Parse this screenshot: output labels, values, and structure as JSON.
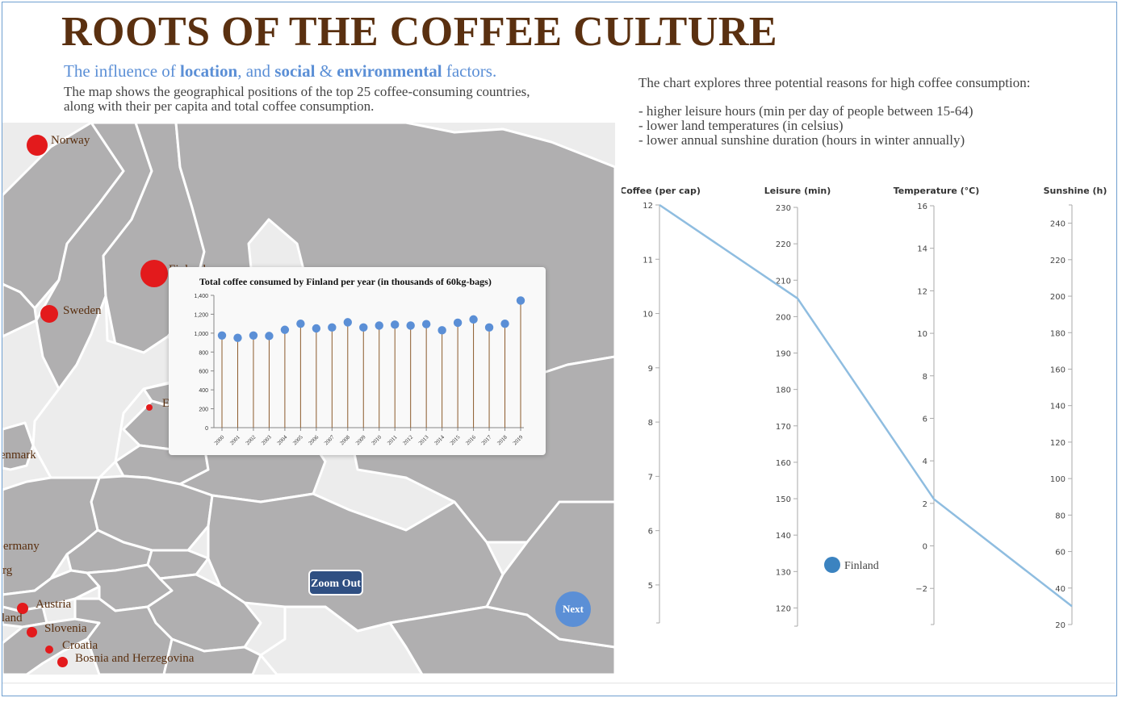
{
  "header": {
    "title": "ROOTS OF THE COFFEE CULTURE",
    "subtitle_parts": [
      "The influence of ",
      "location",
      ", and ",
      "social",
      " & ",
      "environmental",
      " factors."
    ],
    "description": "The map shows the geographical positions of the top 25 coffee-consuming countries, along with their per capita and total coffee consumption."
  },
  "right_intro": {
    "lead": "The chart explores three potential reasons for high coffee consumption:",
    "bullets": [
      "- higher leisure hours (min per day of people between 15-64)",
      "- lower land temperatures (in celsius)",
      "- lower annual sunshine duration (hours in winter annually)"
    ]
  },
  "map": {
    "countries": [
      {
        "name": "Norway"
      },
      {
        "name": "Finland"
      },
      {
        "name": "Sweden"
      },
      {
        "name": "Estonia"
      },
      {
        "name": "Denmark"
      },
      {
        "name": "Germany"
      },
      {
        "name": "Luxembourg"
      },
      {
        "name": "Austria"
      },
      {
        "name": "Switzerland"
      },
      {
        "name": "Slovenia"
      },
      {
        "name": "Croatia"
      },
      {
        "name": "Bosnia and Herzegovina"
      }
    ],
    "zoom_out_label": "Zoom Out",
    "next_label": "Next",
    "colors": {
      "land": "#b0afb0",
      "sea": "#ececec",
      "dot": "#e31a1c",
      "label": "#5a3010"
    }
  },
  "chart_data": [
    {
      "type": "bar",
      "title": "Total coffee consumed by Finland per year (in thousands of 60kg-bags)",
      "categories": [
        "2000",
        "2001",
        "2002",
        "2003",
        "2004",
        "2005",
        "2006",
        "2007",
        "2008",
        "2009",
        "2010",
        "2011",
        "2012",
        "2013",
        "2014",
        "2015",
        "2016",
        "2017",
        "2018",
        "2019"
      ],
      "values": [
        975,
        950,
        975,
        970,
        1035,
        1100,
        1050,
        1060,
        1115,
        1060,
        1080,
        1090,
        1080,
        1095,
        1030,
        1110,
        1145,
        1060,
        1100,
        1345
      ],
      "ylim": [
        0,
        1400
      ],
      "yticks": [
        0,
        200,
        400,
        600,
        800,
        1000,
        1200,
        1400
      ],
      "ytick_labels": [
        "0",
        "200",
        "400",
        "600",
        "800",
        "1,000",
        "1,200",
        "1,400"
      ],
      "style": "lollipop",
      "colors": {
        "stem": "#8b5a2b",
        "head": "#5b8fd6"
      }
    },
    {
      "type": "line",
      "chart_kind": "parallel-coordinates",
      "axes": [
        {
          "name": "Coffee (per cap)",
          "range": [
            4.3,
            12
          ],
          "ticks": [
            5,
            6,
            7,
            8,
            9,
            10,
            11,
            12
          ]
        },
        {
          "name": "Leisure (min)",
          "range": [
            115,
            230
          ],
          "ticks": [
            120,
            130,
            140,
            150,
            160,
            170,
            180,
            190,
            200,
            210,
            220,
            230
          ]
        },
        {
          "name": "Temperature (°C)",
          "range": [
            -3.7,
            16
          ],
          "ticks": [
            -2,
            0,
            2,
            4,
            6,
            8,
            10,
            12,
            14,
            16
          ],
          "tick_labels": [
            "−2",
            "0",
            "2",
            "4",
            "6",
            "8",
            "10",
            "12",
            "14",
            "16"
          ]
        },
        {
          "name": "Sunshine (h)",
          "range": [
            20,
            250
          ],
          "ticks": [
            20,
            40,
            60,
            80,
            100,
            120,
            140,
            160,
            180,
            200,
            220,
            240
          ]
        }
      ],
      "series": [
        {
          "name": "Finland",
          "values": [
            12,
            205,
            2.2,
            30
          ]
        }
      ],
      "legend": {
        "label": "Finland",
        "placement": "bottom-center"
      },
      "colors": {
        "line": "#8fbde0",
        "legend_dot": "#3b83c0"
      }
    }
  ]
}
